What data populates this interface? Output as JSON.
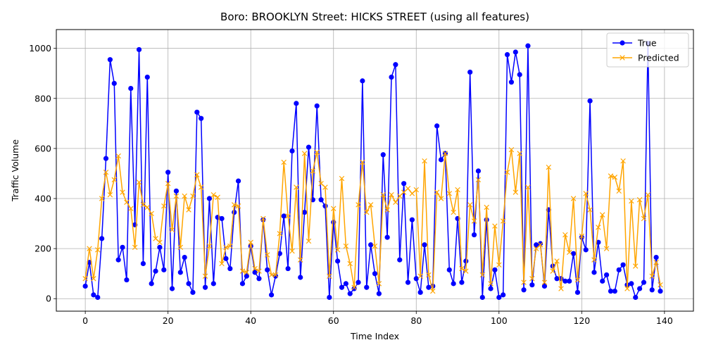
{
  "chart_data": {
    "type": "line",
    "title": "Boro: BROOKLYN Street: HICKS STREET (using all features)",
    "xlabel": "Time Index",
    "ylabel": "Traffic Volume",
    "xlim": [
      -7,
      147
    ],
    "ylim": [
      -50,
      1075
    ],
    "xticks": [
      0,
      20,
      40,
      60,
      80,
      100,
      120,
      140
    ],
    "yticks": [
      0,
      200,
      400,
      600,
      800,
      1000
    ],
    "grid": true,
    "legend_position": "top-right",
    "series": [
      {
        "name": "True",
        "color": "#0000ff",
        "marker": "circle",
        "values": [
          50,
          145,
          15,
          5,
          240,
          560,
          955,
          860,
          155,
          205,
          75,
          840,
          295,
          995,
          140,
          885,
          60,
          110,
          205,
          115,
          505,
          40,
          430,
          105,
          165,
          60,
          25,
          745,
          720,
          45,
          400,
          60,
          325,
          320,
          160,
          120,
          345,
          470,
          60,
          90,
          210,
          105,
          80,
          315,
          115,
          15,
          90,
          180,
          330,
          120,
          590,
          780,
          85,
          345,
          605,
          395,
          770,
          395,
          370,
          5,
          305,
          150,
          45,
          60,
          20,
          40,
          65,
          870,
          45,
          215,
          100,
          20,
          575,
          245,
          885,
          935,
          155,
          460,
          65,
          315,
          80,
          25,
          215,
          45,
          50,
          690,
          555,
          580,
          115,
          60,
          320,
          65,
          150,
          905,
          255,
          510,
          5,
          315,
          40,
          115,
          5,
          15,
          975,
          865,
          985,
          895,
          35,
          1010,
          55,
          215,
          220,
          50,
          355,
          130,
          80,
          80,
          70,
          70,
          180,
          25,
          245,
          195,
          790,
          105,
          225,
          70,
          95,
          30,
          30,
          115,
          135,
          55,
          60,
          5,
          40,
          65,
          1020,
          35,
          165,
          30
        ]
      },
      {
        "name": "Predicted",
        "color": "#ffa500",
        "marker": "x",
        "values": [
          80,
          200,
          80,
          195,
          400,
          505,
          415,
          475,
          570,
          425,
          385,
          360,
          205,
          465,
          375,
          365,
          340,
          240,
          225,
          370,
          460,
          275,
          410,
          205,
          410,
          355,
          410,
          495,
          445,
          90,
          210,
          415,
          405,
          140,
          205,
          210,
          375,
          370,
          110,
          105,
          225,
          120,
          110,
          320,
          175,
          95,
          95,
          260,
          545,
          330,
          190,
          445,
          155,
          580,
          230,
          510,
          585,
          460,
          445,
          90,
          360,
          195,
          480,
          210,
          140,
          45,
          375,
          545,
          345,
          375,
          210,
          60,
          415,
          355,
          415,
          385,
          410,
          425,
          440,
          420,
          435,
          90,
          550,
          95,
          30,
          425,
          400,
          580,
          420,
          345,
          435,
          120,
          110,
          375,
          310,
          475,
          95,
          365,
          60,
          290,
          135,
          310,
          505,
          595,
          425,
          580,
          65,
          445,
          80,
          200,
          215,
          65,
          525,
          110,
          150,
          40,
          255,
          185,
          400,
          75,
          250,
          420,
          355,
          155,
          285,
          335,
          200,
          490,
          485,
          430,
          550,
          40,
          390,
          130,
          395,
          320,
          415,
          90,
          145,
          55
        ]
      }
    ]
  }
}
